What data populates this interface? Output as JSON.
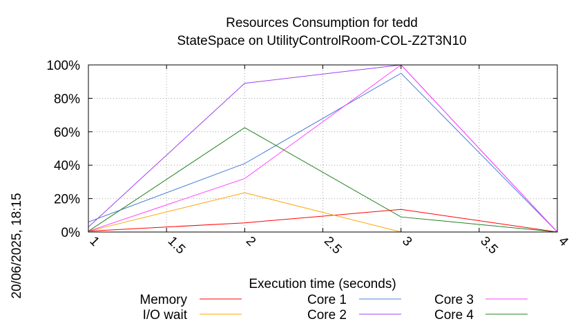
{
  "chart_data": {
    "type": "line",
    "title_line1": "Resources Consumption for tedd",
    "title_line2": "StateSpace on UtilityControlRoom-COL-Z2T3N10",
    "xlabel": "Execution time (seconds)",
    "side_label": "20/06/2025, 18:15",
    "xlim": [
      1,
      4
    ],
    "ylim": [
      0,
      100
    ],
    "x_ticks": [
      "1",
      "1.5",
      "2",
      "2.5",
      "3",
      "3.5",
      "4"
    ],
    "y_ticks": [
      "0%",
      "20%",
      "40%",
      "60%",
      "80%",
      "100%"
    ],
    "grid": true,
    "legend_position": "bottom",
    "series": [
      {
        "name": "Memory",
        "color": "#ff0000",
        "x": [
          1,
          2,
          3,
          4
        ],
        "y": [
          0.5,
          5.5,
          13.5,
          0
        ]
      },
      {
        "name": "I/O wait",
        "color": "#ffa500",
        "x": [
          1,
          2,
          3
        ],
        "y": [
          0.5,
          23.5,
          0
        ]
      },
      {
        "name": "Core 1",
        "color": "#4a7fd4",
        "x": [
          1,
          2,
          3,
          4
        ],
        "y": [
          6,
          41,
          95,
          0
        ]
      },
      {
        "name": "Core 2",
        "color": "#a040f0",
        "x": [
          1,
          2,
          3,
          4
        ],
        "y": [
          3,
          89,
          100,
          0
        ]
      },
      {
        "name": "Core 3",
        "color": "#ff40ff",
        "x": [
          1,
          2,
          3,
          4
        ],
        "y": [
          0.5,
          32,
          100,
          0
        ]
      },
      {
        "name": "Core 4",
        "color": "#208020",
        "x": [
          1,
          2,
          3,
          4
        ],
        "y": [
          0.5,
          62.5,
          9,
          0
        ]
      }
    ]
  }
}
